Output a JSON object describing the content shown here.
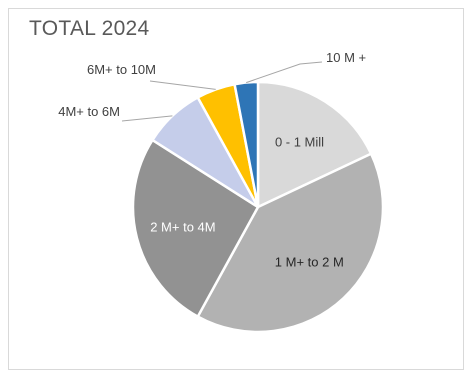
{
  "chart_data": {
    "type": "pie",
    "title": "TOTAL 2024",
    "categories": [
      "0 - 1 Mill",
      "1 M+ to 2 M",
      "2 M+ to 4M",
      "4M+ to 6M",
      "6M+ to 10M",
      "10 M +"
    ],
    "values": [
      18,
      40,
      26,
      8,
      5,
      3
    ],
    "colors": [
      "#d9d9d9",
      "#b2b2b2",
      "#929292",
      "#c5cdea",
      "#ffc000",
      "#2e75b6"
    ],
    "label_text_colors": [
      "#404040",
      "#262626",
      "#ffffff",
      "#404040",
      "#404040",
      "#404040"
    ],
    "legend": "none"
  }
}
